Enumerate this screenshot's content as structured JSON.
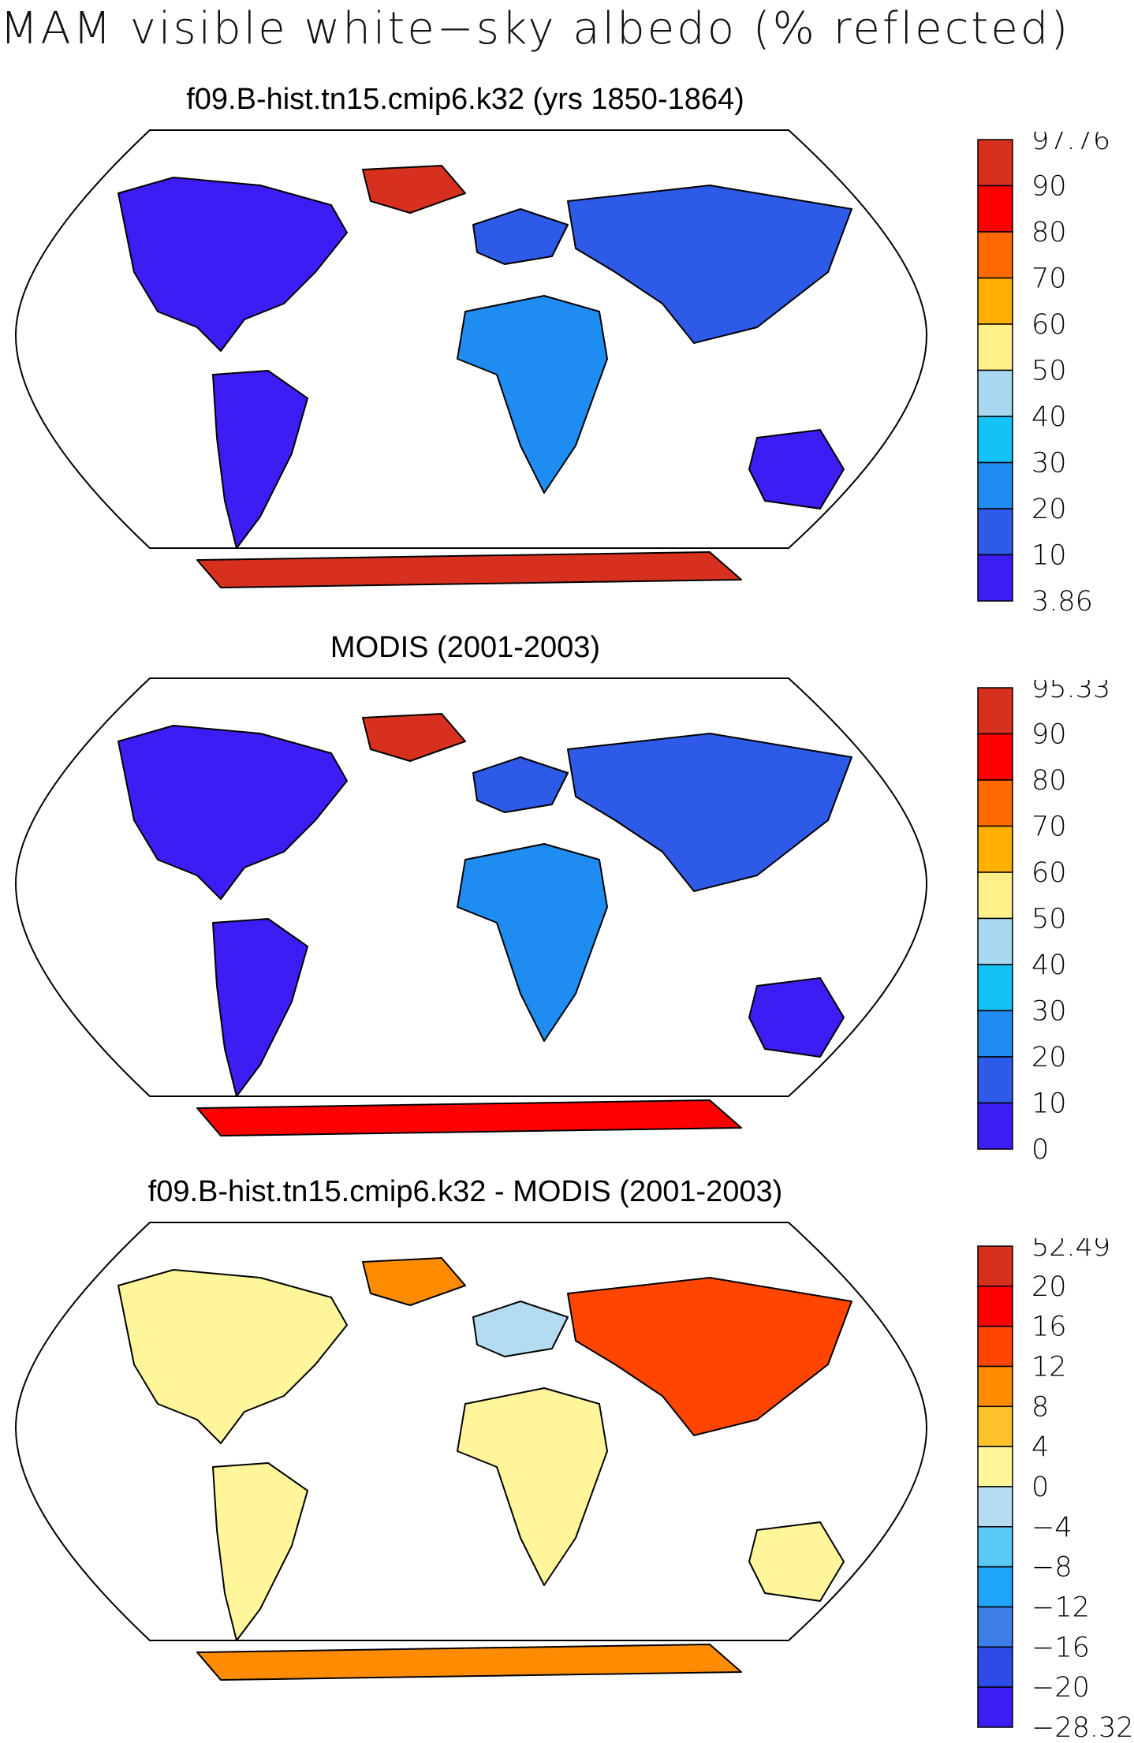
{
  "figure_title": "MAM visible white−sky albedo (% reflected)",
  "panels": [
    {
      "title": "f09.B-hist.tn15.cmip6.k32 (yrs 1850-1864)",
      "colorbar": {
        "labels": [
          "97.76",
          "90",
          "80",
          "70",
          "60",
          "50",
          "40",
          "30",
          "20",
          "10",
          "3.86"
        ],
        "colors": [
          "#d7301f",
          "#ff0000",
          "#ff6a00",
          "#ffb000",
          "#fff08a",
          "#a7d8f0",
          "#14c3f6",
          "#1e8cf0",
          "#2d5ae6",
          "#3c1ef5"
        ]
      }
    },
    {
      "title": "MODIS (2001-2003)",
      "colorbar": {
        "labels": [
          "95.33",
          "90",
          "80",
          "70",
          "60",
          "50",
          "40",
          "30",
          "20",
          "10",
          "0"
        ],
        "colors": [
          "#d7301f",
          "#ff0000",
          "#ff6a00",
          "#ffb000",
          "#fff08a",
          "#a7d8f0",
          "#14c3f6",
          "#1e8cf0",
          "#2d5ae6",
          "#3c1ef5"
        ]
      }
    },
    {
      "title": "f09.B-hist.tn15.cmip6.k32 - MODIS (2001-2003)",
      "colorbar": {
        "labels": [
          "52.49",
          "20",
          "16",
          "12",
          "8",
          "4",
          "0",
          "−4",
          "−8",
          "−12",
          "−16",
          "−20",
          "−28.32"
        ],
        "colors": [
          "#d7301f",
          "#ff0000",
          "#ff4500",
          "#ff8c00",
          "#ffc22a",
          "#fff59a",
          "#b3dcf0",
          "#5ac8f5",
          "#1ea5fa",
          "#3c7ee6",
          "#2d4be6",
          "#3c1ef5"
        ]
      }
    }
  ]
}
